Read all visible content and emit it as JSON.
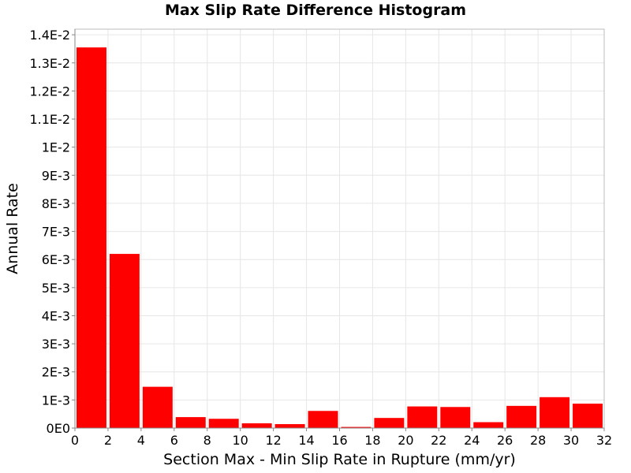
{
  "chart_data": {
    "type": "bar",
    "title": "Max Slip Rate Difference Histogram",
    "xlabel": "Section Max - Min Slip Rate in Rupture (mm/yr)",
    "ylabel": "Annual Rate",
    "xlim": [
      0,
      32
    ],
    "ylim": [
      0,
      0.0142
    ],
    "bin_width": 2,
    "bins": [
      {
        "x": 1,
        "value": 0.01355
      },
      {
        "x": 3,
        "value": 0.0062
      },
      {
        "x": 5,
        "value": 0.00147
      },
      {
        "x": 7,
        "value": 0.00039
      },
      {
        "x": 9,
        "value": 0.00033
      },
      {
        "x": 11,
        "value": 0.00017
      },
      {
        "x": 13,
        "value": 0.00014
      },
      {
        "x": 15,
        "value": 0.00061
      },
      {
        "x": 17,
        "value": 4e-05
      },
      {
        "x": 19,
        "value": 0.00036
      },
      {
        "x": 21,
        "value": 0.00077
      },
      {
        "x": 23,
        "value": 0.00075
      },
      {
        "x": 25,
        "value": 0.00021
      },
      {
        "x": 27,
        "value": 0.00079
      },
      {
        "x": 29,
        "value": 0.0011
      },
      {
        "x": 31,
        "value": 0.00087
      }
    ],
    "x_ticks": [
      {
        "value": 0,
        "label": "0"
      },
      {
        "value": 2,
        "label": "2"
      },
      {
        "value": 4,
        "label": "4"
      },
      {
        "value": 6,
        "label": "6"
      },
      {
        "value": 8,
        "label": "8"
      },
      {
        "value": 10,
        "label": "10"
      },
      {
        "value": 12,
        "label": "12"
      },
      {
        "value": 14,
        "label": "14"
      },
      {
        "value": 16,
        "label": "16"
      },
      {
        "value": 18,
        "label": "18"
      },
      {
        "value": 20,
        "label": "20"
      },
      {
        "value": 22,
        "label": "22"
      },
      {
        "value": 24,
        "label": "24"
      },
      {
        "value": 26,
        "label": "26"
      },
      {
        "value": 28,
        "label": "28"
      },
      {
        "value": 30,
        "label": "30"
      },
      {
        "value": 32,
        "label": "32"
      }
    ],
    "y_ticks": [
      {
        "value": 0,
        "label": "0E0"
      },
      {
        "value": 0.001,
        "label": "1E-3"
      },
      {
        "value": 0.002,
        "label": "2E-3"
      },
      {
        "value": 0.003,
        "label": "3E-3"
      },
      {
        "value": 0.004,
        "label": "4E-3"
      },
      {
        "value": 0.005,
        "label": "5E-3"
      },
      {
        "value": 0.006,
        "label": "6E-3"
      },
      {
        "value": 0.007,
        "label": "7E-3"
      },
      {
        "value": 0.008,
        "label": "8E-3"
      },
      {
        "value": 0.009,
        "label": "9E-3"
      },
      {
        "value": 0.01,
        "label": "1E-2"
      },
      {
        "value": 0.011,
        "label": "1.1E-2"
      },
      {
        "value": 0.012,
        "label": "1.2E-2"
      },
      {
        "value": 0.013,
        "label": "1.3E-2"
      },
      {
        "value": 0.014,
        "label": "1.4E-2"
      }
    ],
    "grid": true,
    "bar_color": "#ff0000",
    "grid_color": "#e6e6e6",
    "border_color": "#bdbdbd"
  }
}
